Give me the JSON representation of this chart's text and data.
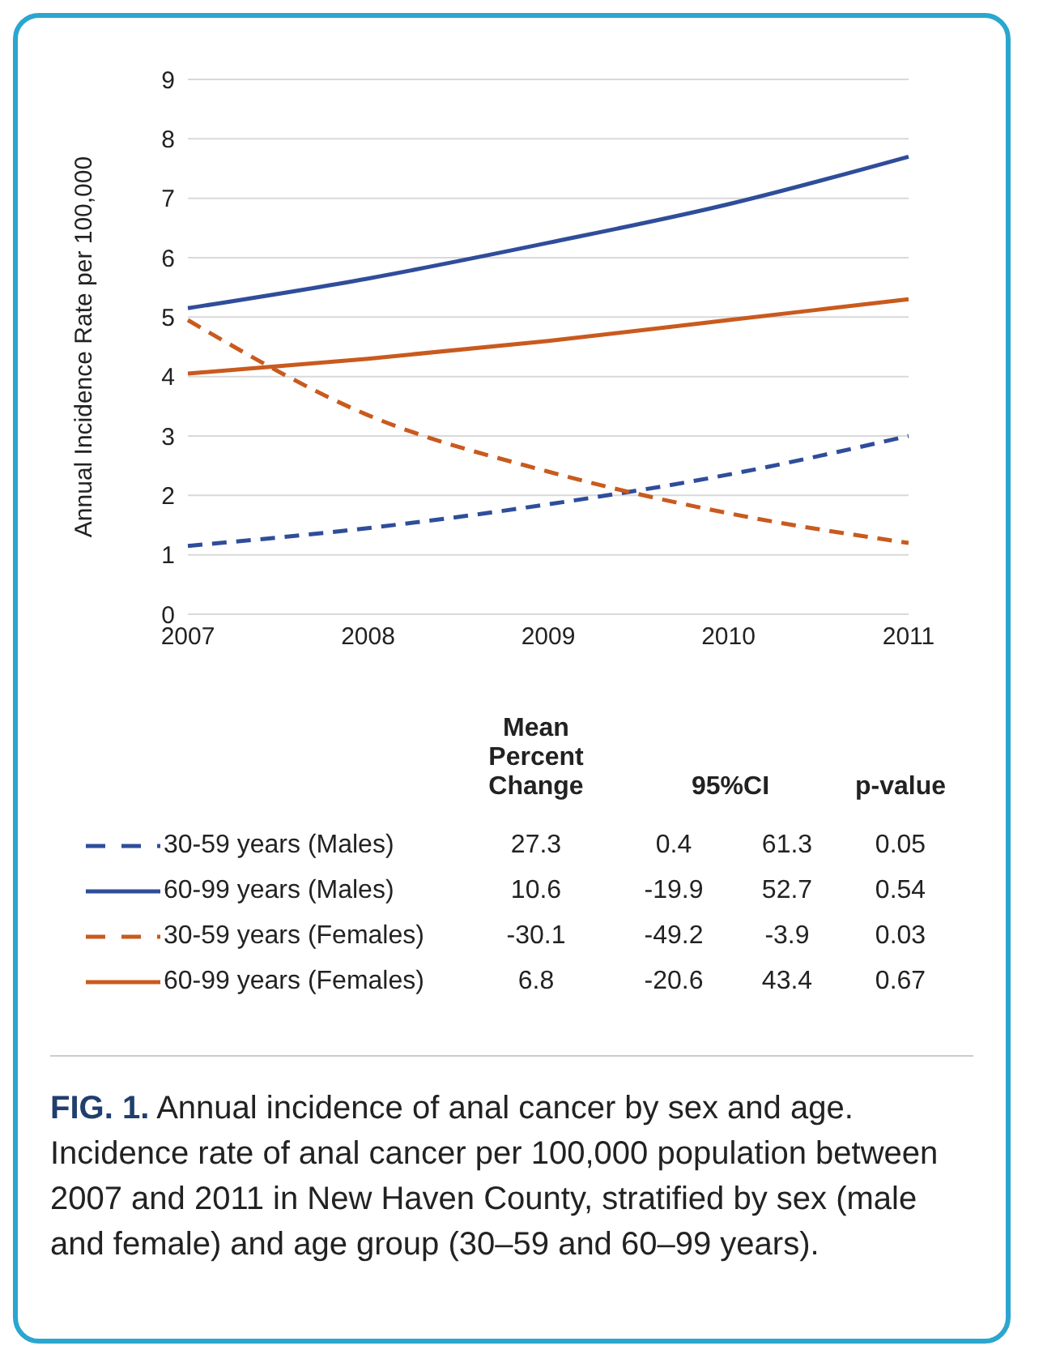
{
  "chart_data": {
    "type": "line",
    "ylabel": "Annual Incidence Rate per 100,000",
    "categories": [
      "2007",
      "2008",
      "2009",
      "2010",
      "2011"
    ],
    "series": [
      {
        "name": "30-59 years (Males)",
        "color": "#2f4d9a",
        "line_style": "dashed",
        "values": [
          1.15,
          1.45,
          1.85,
          2.35,
          3.0
        ]
      },
      {
        "name": "60-99 years (Males)",
        "color": "#2f4d9a",
        "line_style": "solid",
        "values": [
          5.15,
          5.65,
          6.25,
          6.9,
          7.7
        ]
      },
      {
        "name": "30-59 years (Females)",
        "color": "#c95a1e",
        "line_style": "dashed",
        "values": [
          4.95,
          3.35,
          2.4,
          1.7,
          1.2
        ]
      },
      {
        "name": "60-99 years (Females)",
        "color": "#c95a1e",
        "line_style": "solid",
        "values": [
          4.05,
          4.3,
          4.6,
          4.95,
          5.3
        ]
      }
    ],
    "ylim": [
      0,
      9
    ],
    "yticks": [
      0,
      1,
      2,
      3,
      4,
      5,
      6,
      7,
      8,
      9
    ],
    "grid": "y",
    "legend": "bottom",
    "marker": "none",
    "annotations": [
      "Mean Percent Change",
      "95%CI",
      "p-value",
      "27.3",
      "0.4",
      "61.3",
      "0.05",
      "10.6",
      "-19.9",
      "52.7",
      "0.54",
      "-30.1",
      "-49.2",
      "-3.9",
      "0.03",
      "6.8",
      "-20.6",
      "43.4",
      "0.67",
      "FIG. 1.",
      "Annual incidence of anal cancer by sex and age. Incidence rate of anal cancer per 100,000 population between 2007 and 2011 in New Haven County, stratified by sex (male and female) and age group (30–59 and 60–99 years)."
    ]
  }
}
